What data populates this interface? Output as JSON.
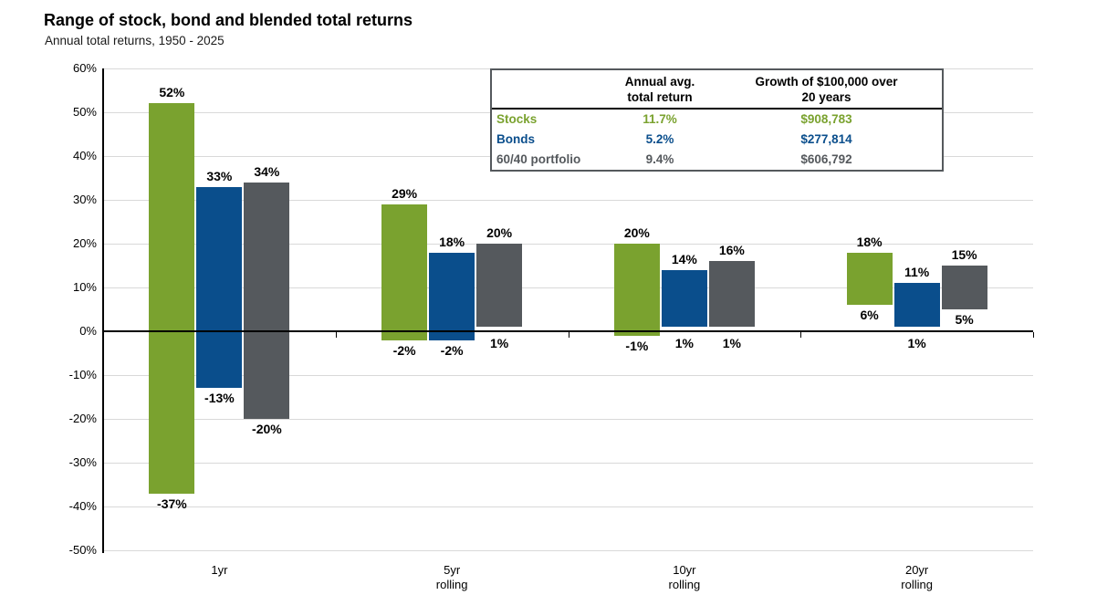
{
  "title": "Range of stock, bond and blended total returns",
  "subtitle": "Annual total returns, 1950 - 2025",
  "colors": {
    "stocks": "#7aa22f",
    "bonds": "#0a4e8c",
    "blended": "#55595d",
    "gridline": "#d9d9d9",
    "axis": "#000000"
  },
  "summary_table": {
    "col_headers": [
      "Annual avg.\ntotal return",
      "Growth of $100,000 over\n20 years"
    ],
    "rows": [
      {
        "label": "Stocks",
        "annual_avg_total_return": "11.7%",
        "growth_of_100k": "$908,783",
        "color": "#7aa22f"
      },
      {
        "label": "Bonds",
        "annual_avg_total_return": "5.2%",
        "growth_of_100k": "$277,814",
        "color": "#0a4e8c"
      },
      {
        "label": "60/40 portfolio",
        "annual_avg_total_return": "9.4%",
        "growth_of_100k": "$606,792",
        "color": "#55595d"
      }
    ]
  },
  "chart_data": {
    "type": "bar",
    "subtype": "floating-range-columns",
    "categories": [
      "1yr",
      "5yr\nrolling",
      "10yr\nrolling",
      "20yr\nrolling"
    ],
    "series": [
      {
        "name": "Stocks",
        "color": "#7aa22f",
        "ranges": [
          {
            "low": -37,
            "high": 52
          },
          {
            "low": -2,
            "high": 29
          },
          {
            "low": -1,
            "high": 20
          },
          {
            "low": 6,
            "high": 18
          }
        ]
      },
      {
        "name": "Bonds",
        "color": "#0a4e8c",
        "ranges": [
          {
            "low": -13,
            "high": 33
          },
          {
            "low": -2,
            "high": 18
          },
          {
            "low": 1,
            "high": 14
          },
          {
            "low": 1,
            "high": 11
          }
        ]
      },
      {
        "name": "60/40 portfolio",
        "color": "#55595d",
        "ranges": [
          {
            "low": -20,
            "high": 34
          },
          {
            "low": 1,
            "high": 20
          },
          {
            "low": 1,
            "high": 16
          },
          {
            "low": 5,
            "high": 15
          }
        ]
      }
    ],
    "ylim": [
      -50,
      60
    ],
    "ytick_step": 10,
    "ytick_labels": [
      "60%",
      "50%",
      "40%",
      "30%",
      "20%",
      "10%",
      "0%",
      "-10%",
      "-20%",
      "-30%",
      "-40%",
      "-50%"
    ],
    "value_label_suffix": "%",
    "grid": true,
    "legend_position": "table-top-right"
  }
}
